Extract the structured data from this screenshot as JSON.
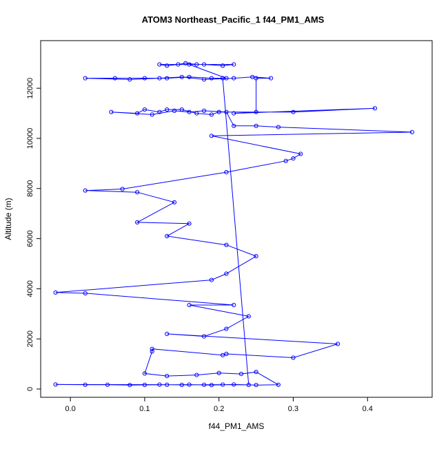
{
  "page": {
    "title": "ATOM3 Northeast_Pacific_1 f44_PM1_AMS"
  },
  "chart_data": {
    "type": "line",
    "title": "ATOM3 Northeast_Pacific_1 f44_PM1_AMS",
    "xlabel": "f44_PM1_AMS",
    "ylabel": "Altitude (m)",
    "series_name": "flight-profile-trace",
    "marker": "open-circle",
    "line_color": "#0000ff",
    "marker_color": "#0000ff",
    "box_color": "#000000",
    "xlim": [
      -0.04,
      0.487
    ],
    "ylim": [
      -330,
      13900
    ],
    "x_ticks": {
      "values": [
        0.0,
        0.1,
        0.2,
        0.3,
        0.4
      ],
      "labels": [
        "0.0",
        "0.1",
        "0.2",
        "0.3",
        "0.4"
      ]
    },
    "y_ticks": {
      "values": [
        0,
        2000,
        4000,
        6000,
        8000,
        10000,
        12000
      ],
      "labels": [
        "0",
        "2000",
        "4000",
        "6000",
        "8000",
        "10000",
        "12000"
      ]
    },
    "grid": false,
    "legend": false,
    "points": [
      [
        0.17,
        12950
      ],
      [
        0.155,
        13000
      ],
      [
        0.145,
        12950
      ],
      [
        0.13,
        12900
      ],
      [
        0.12,
        12950
      ],
      [
        0.18,
        12950
      ],
      [
        0.205,
        12900
      ],
      [
        0.22,
        12950
      ],
      [
        0.16,
        12950
      ],
      [
        0.21,
        12400
      ],
      [
        0.19,
        12400
      ],
      [
        0.16,
        12450
      ],
      [
        0.13,
        12400
      ],
      [
        0.1,
        12400
      ],
      [
        0.06,
        12400
      ],
      [
        0.02,
        12400
      ],
      [
        0.08,
        12350
      ],
      [
        0.12,
        12400
      ],
      [
        0.15,
        12450
      ],
      [
        0.18,
        12350
      ],
      [
        0.22,
        12400
      ],
      [
        0.245,
        12450
      ],
      [
        0.27,
        12400
      ],
      [
        0.25,
        12400
      ],
      [
        0.25,
        11050
      ],
      [
        0.22,
        11000
      ],
      [
        0.41,
        11200
      ],
      [
        0.3,
        11050
      ],
      [
        0.2,
        11050
      ],
      [
        0.19,
        10950
      ],
      [
        0.17,
        11000
      ],
      [
        0.15,
        11150
      ],
      [
        0.13,
        11150
      ],
      [
        0.12,
        11050
      ],
      [
        0.1,
        11150
      ],
      [
        0.09,
        11000
      ],
      [
        0.055,
        11050
      ],
      [
        0.11,
        10950
      ],
      [
        0.14,
        11100
      ],
      [
        0.16,
        11050
      ],
      [
        0.18,
        11100
      ],
      [
        0.21,
        11050
      ],
      [
        0.22,
        10500
      ],
      [
        0.25,
        10500
      ],
      [
        0.28,
        10450
      ],
      [
        0.46,
        10250
      ],
      [
        0.19,
        10100
      ],
      [
        0.31,
        9380
      ],
      [
        0.3,
        9200
      ],
      [
        0.29,
        9100
      ],
      [
        0.21,
        8650
      ],
      [
        0.07,
        7980
      ],
      [
        0.02,
        7920
      ],
      [
        0.09,
        7850
      ],
      [
        0.14,
        7450
      ],
      [
        0.09,
        6650
      ],
      [
        0.16,
        6600
      ],
      [
        0.13,
        6100
      ],
      [
        0.21,
        5750
      ],
      [
        0.25,
        5300
      ],
      [
        0.21,
        4600
      ],
      [
        0.19,
        4350
      ],
      [
        -0.02,
        3850
      ],
      [
        0.02,
        3820
      ],
      [
        0.22,
        3350
      ],
      [
        0.16,
        3350
      ],
      [
        0.24,
        2900
      ],
      [
        0.21,
        2400
      ],
      [
        0.18,
        2100
      ],
      [
        0.13,
        2200
      ],
      [
        0.36,
        1800
      ],
      [
        0.3,
        1250
      ],
      [
        0.21,
        1400
      ],
      [
        0.205,
        1350
      ],
      [
        0.11,
        1600
      ],
      [
        0.11,
        1500
      ],
      [
        0.1,
        620
      ],
      [
        0.13,
        520
      ],
      [
        0.17,
        560
      ],
      [
        0.2,
        640
      ],
      [
        0.23,
        600
      ],
      [
        0.25,
        680
      ],
      [
        0.28,
        170
      ],
      [
        0.25,
        160
      ],
      [
        0.22,
        180
      ],
      [
        0.19,
        160
      ],
      [
        0.16,
        175
      ],
      [
        0.13,
        170
      ],
      [
        0.1,
        165
      ],
      [
        0.08,
        160
      ],
      [
        0.05,
        170
      ],
      [
        0.02,
        170
      ],
      [
        -0.02,
        180
      ],
      [
        0.12,
        175
      ],
      [
        0.15,
        165
      ],
      [
        0.18,
        170
      ],
      [
        0.205,
        175
      ],
      [
        0.24,
        165
      ],
      [
        0.205,
        12400
      ]
    ]
  }
}
